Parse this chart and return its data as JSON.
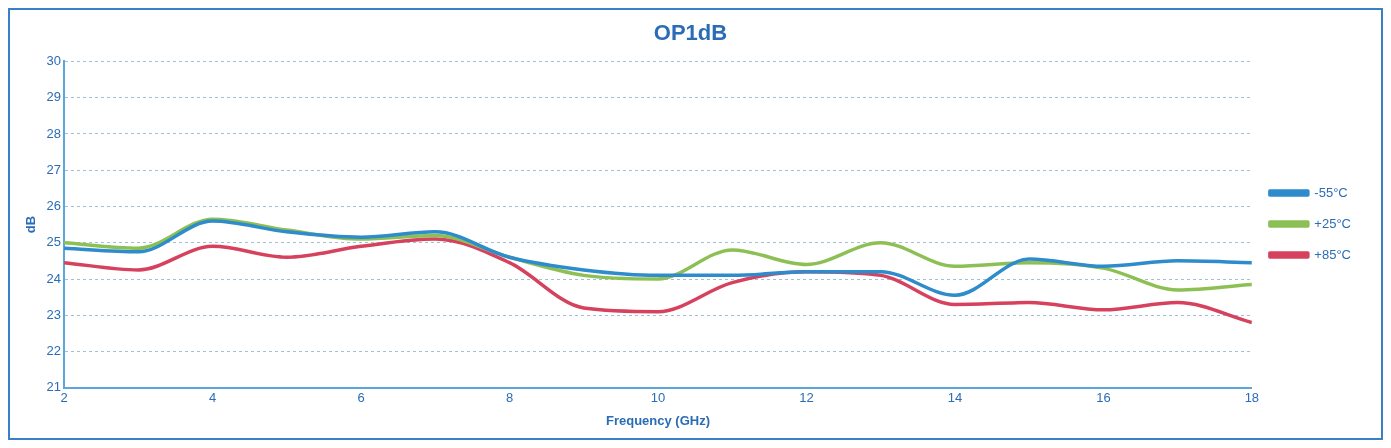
{
  "chart_data": {
    "type": "line",
    "title": "OP1dB",
    "xlabel": "Frequency (GHz)",
    "ylabel": "dB",
    "x": [
      2,
      3,
      4,
      5,
      6,
      7,
      8,
      9,
      10,
      11,
      12,
      13,
      14,
      15,
      16,
      17,
      18
    ],
    "series": [
      {
        "name": "-55°C",
        "color": "#2e8bcc",
        "values": [
          24.85,
          24.75,
          25.6,
          25.3,
          25.15,
          25.3,
          24.6,
          24.25,
          24.1,
          24.1,
          24.2,
          24.2,
          23.55,
          24.55,
          24.35,
          24.5,
          24.45
        ]
      },
      {
        "name": "+25°C",
        "color": "#8dc054",
        "values": [
          25.0,
          24.85,
          25.65,
          25.35,
          25.1,
          25.2,
          24.6,
          24.1,
          24.0,
          24.8,
          24.4,
          25.0,
          24.35,
          24.45,
          24.3,
          23.7,
          23.85
        ]
      },
      {
        "name": "+85°C",
        "color": "#d6415e",
        "values": [
          24.45,
          24.25,
          24.9,
          24.6,
          24.9,
          25.1,
          24.45,
          23.2,
          23.1,
          23.9,
          24.2,
          24.1,
          23.3,
          23.35,
          23.15,
          23.35,
          22.8
        ]
      }
    ],
    "xlim": [
      2,
      18
    ],
    "xticks": [
      2,
      4,
      6,
      8,
      10,
      12,
      14,
      16,
      18
    ],
    "ylim": [
      21,
      30
    ],
    "yticks": [
      21,
      22,
      23,
      24,
      25,
      26,
      27,
      28,
      29,
      30
    ],
    "grid": "y",
    "legend": "right",
    "marker": "none",
    "line_style": "solid"
  }
}
